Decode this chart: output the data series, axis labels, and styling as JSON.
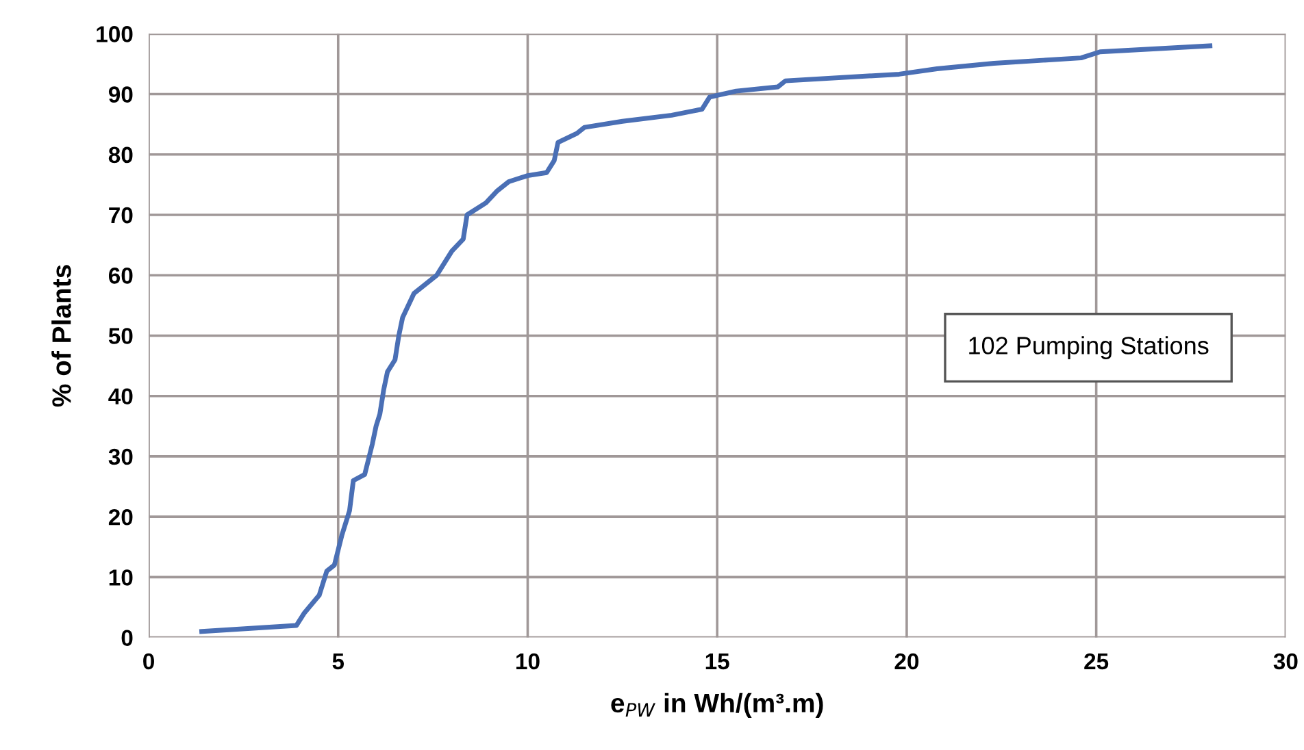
{
  "chart_data": {
    "type": "line",
    "xlabel": "e$_{PW}$ in Wh/(m³.m)",
    "ylabel": "% of Plants",
    "xlim": [
      0,
      30
    ],
    "xticks": [
      0,
      5,
      10,
      15,
      20,
      25,
      30
    ],
    "ylim": [
      0,
      100
    ],
    "yticks": [
      0,
      10,
      20,
      30,
      40,
      50,
      60,
      70,
      80,
      90,
      100
    ],
    "grid": true,
    "marker": "none",
    "line_style": "solid",
    "annotations": [
      "102 Pumping Stations"
    ],
    "series": [
      {
        "color": "#4a6fb5",
        "x": [
          1.4,
          3.9,
          4.1,
          4.5,
          4.7,
          4.9,
          5.1,
          5.3,
          5.4,
          5.7,
          5.9,
          6.0,
          6.1,
          6.2,
          6.3,
          6.5,
          6.6,
          6.7,
          7.0,
          7.3,
          7.6,
          7.7,
          8.0,
          8.3,
          8.4,
          8.9,
          9.2,
          9.5,
          10.0,
          10.5,
          10.7,
          10.8,
          11.3,
          11.5,
          12.5,
          13.8,
          14.6,
          14.8,
          15.5,
          16.6,
          16.8,
          19.8,
          20.8,
          22.3,
          24.6,
          25.1,
          28.0
        ],
        "values": [
          1,
          2,
          4,
          7,
          11,
          12,
          17,
          21,
          26,
          27,
          32,
          35,
          37,
          41,
          44,
          46,
          50,
          53,
          57,
          58.5,
          60,
          61,
          64,
          66,
          70,
          72,
          74,
          75.5,
          76.5,
          77,
          79,
          82,
          83.5,
          84.5,
          85.5,
          86.5,
          87.5,
          89.5,
          90.5,
          91.2,
          92.2,
          93.3,
          94.2,
          95.1,
          96,
          97,
          98
        ]
      }
    ]
  }
}
